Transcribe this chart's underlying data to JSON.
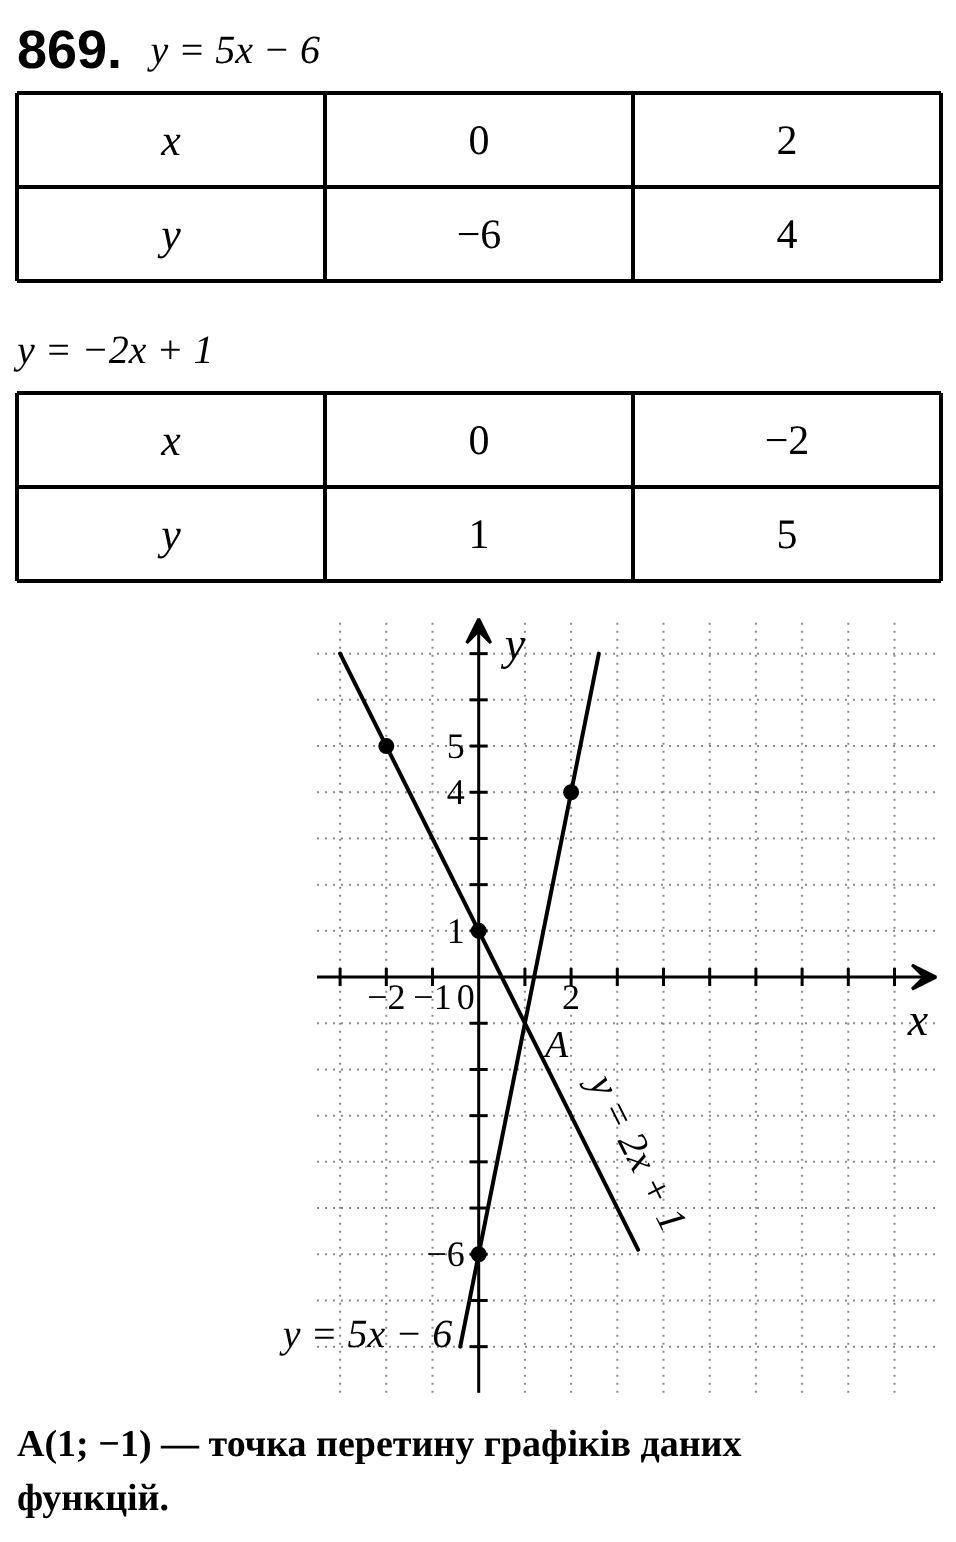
{
  "chart_data": [
    {
      "type": "other",
      "title": "869.",
      "subtitle": "y = 5x − 6",
      "xlabel": "x",
      "ylabel": "y",
      "categories": [
        "0",
        "2"
      ],
      "values": [
        -6,
        4
      ],
      "data_labels": true
    },
    {
      "type": "other",
      "subtitle": "y = −2x + 1",
      "xlabel": "x",
      "ylabel": "y",
      "categories": [
        "0",
        "−2"
      ],
      "values": [
        1,
        5
      ],
      "data_labels": true
    },
    {
      "type": "line",
      "xlabel": "x",
      "ylabel": "y",
      "xlim": [
        -3.5,
        9.9
      ],
      "ylim": [
        -9,
        7.75
      ],
      "xticks": [
        {
          "value": -3,
          "label": null
        },
        -2,
        -1,
        0,
        {
          "value": 1,
          "label": null
        },
        2,
        {
          "value": 3,
          "label": null
        },
        {
          "value": 4,
          "label": null
        },
        {
          "value": 5,
          "label": null
        },
        {
          "value": 6,
          "label": null
        },
        {
          "value": 7,
          "label": null
        },
        {
          "value": 8,
          "label": null
        },
        {
          "value": 9,
          "label": null
        }
      ],
      "yticks": [
        {
          "value": -8,
          "label": null
        },
        {
          "value": -7,
          "label": null
        },
        -6,
        {
          "value": -5,
          "label": null
        },
        {
          "value": -4,
          "label": null
        },
        {
          "value": -3,
          "label": null
        },
        {
          "value": -2,
          "label": null
        },
        {
          "value": -1,
          "label": null
        },
        1,
        {
          "value": 2,
          "label": null
        },
        {
          "value": 3,
          "label": null
        },
        4,
        5,
        {
          "value": 6,
          "label": null
        },
        {
          "value": 7,
          "label": null
        }
      ],
      "grid": true,
      "line_style": "solid",
      "series": [
        {
          "name": "y = 5x − 6",
          "type": "line",
          "color": "#000000",
          "x": [
            -0.4,
            2.6
          ],
          "values": [
            -8,
            7
          ]
        },
        {
          "name": "y = 2x + 1",
          "type": "line",
          "color": "#000000",
          "x": [
            -3,
            3.45
          ],
          "values": [
            7,
            -5.9
          ]
        },
        {
          "type": "scatter",
          "marker": "circle",
          "color": "#000000",
          "x": [
            0,
            2
          ],
          "values": [
            -6,
            4
          ]
        },
        {
          "type": "scatter",
          "marker": "circle",
          "color": "#000000",
          "x": [
            -2,
            0
          ],
          "values": [
            5,
            1
          ]
        }
      ],
      "annotations": [
        {
          "text": "A",
          "x": 1,
          "y": -1
        },
        "A(1; −1) — точка перетину графіків даних функцій."
      ]
    }
  ]
}
